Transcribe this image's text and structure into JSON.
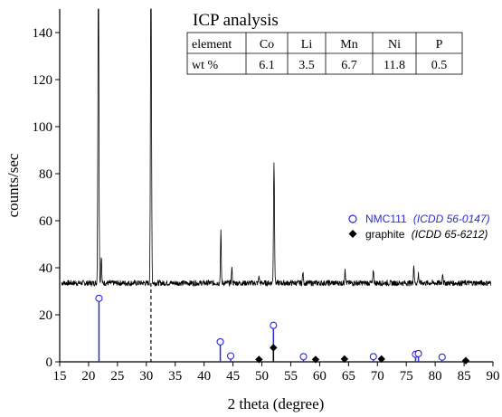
{
  "chart_data": {
    "type": "line",
    "xlabel": "2 theta (degree)",
    "ylabel": "counts/sec",
    "xlim": [
      15,
      90
    ],
    "ylim": [
      0,
      150
    ],
    "xticks": [
      15,
      20,
      25,
      30,
      35,
      40,
      45,
      50,
      55,
      60,
      65,
      70,
      75,
      80,
      85,
      90
    ],
    "yticks": [
      0,
      20,
      40,
      60,
      80,
      100,
      120,
      140
    ],
    "grid": false,
    "xrd_pattern": {
      "baseline": 33.5,
      "noise": 1.2,
      "peaks": [
        {
          "x": 21.7,
          "height": 150
        },
        {
          "x": 22.2,
          "height": 12
        },
        {
          "x": 30.8,
          "height": 150
        },
        {
          "x": 42.9,
          "height": 22
        },
        {
          "x": 44.8,
          "height": 6.5
        },
        {
          "x": 49.5,
          "height": 3
        },
        {
          "x": 52.1,
          "height": 51
        },
        {
          "x": 57.1,
          "height": 4.5
        },
        {
          "x": 64.4,
          "height": 6.5
        },
        {
          "x": 69.3,
          "height": 5.5
        },
        {
          "x": 76.3,
          "height": 8
        },
        {
          "x": 77.1,
          "height": 4
        },
        {
          "x": 81.3,
          "height": 4.5
        }
      ]
    },
    "reference_lines": [
      {
        "x": 30.8,
        "y_from": 0,
        "y_to": 33.5,
        "style": "dashed",
        "color": "#000000"
      }
    ],
    "series": [
      {
        "name": "NMC111",
        "code": "(ICDD 56-0147)",
        "color": "#2a2ad4",
        "marker": "open-circle",
        "x": [
          21.8,
          42.8,
          44.6,
          52.0,
          57.2,
          69.3,
          76.6,
          77.1,
          81.2
        ],
        "y": [
          27,
          8.5,
          2.5,
          15.5,
          2.2,
          2.2,
          3.2,
          3.5,
          2.0
        ]
      },
      {
        "name": "graphite",
        "code": "(ICDD 65-6212)",
        "color": "#000000",
        "marker": "filled-diamond",
        "x": [
          49.5,
          52.0,
          59.3,
          64.3,
          70.7,
          85.3
        ],
        "y": [
          1.0,
          6.0,
          1.0,
          1.2,
          1.2,
          0.5
        ]
      }
    ],
    "legend_position": "right"
  },
  "icp": {
    "title": "ICP analysis",
    "header": [
      "element",
      "Co",
      "Li",
      "Mn",
      "Ni",
      "P"
    ],
    "row": [
      "wt %",
      "6.1",
      "3.5",
      "6.7",
      "11.8",
      "0.5"
    ]
  }
}
